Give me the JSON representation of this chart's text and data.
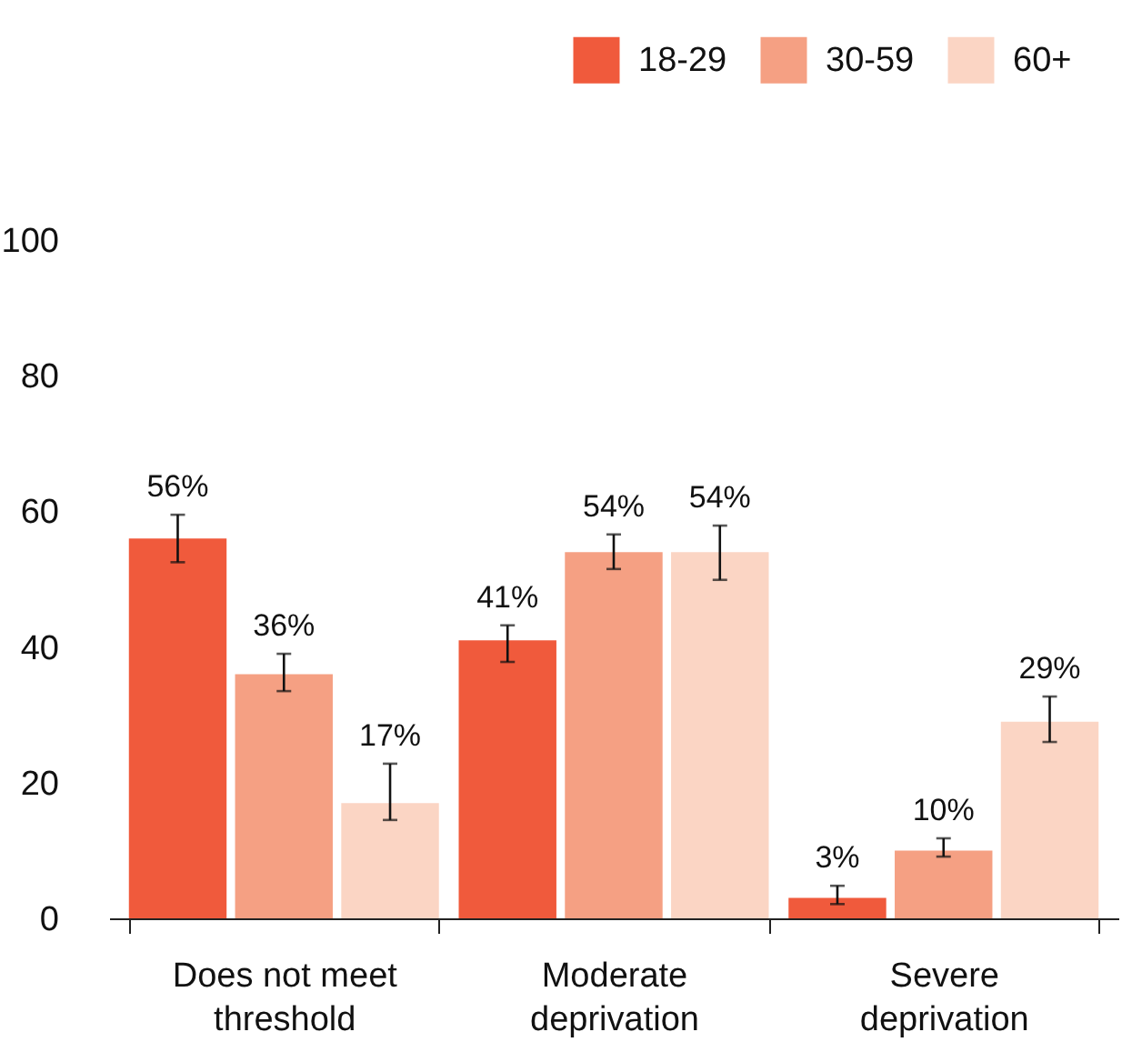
{
  "chart_data": {
    "type": "bar",
    "categories": [
      "Does not meet threshold",
      "Moderate deprivation",
      "Severe deprivation"
    ],
    "series": [
      {
        "name": "18-29",
        "color": "#f05a3c",
        "values": [
          56,
          41,
          3
        ],
        "errors": [
          [
            52.5,
            59.5
          ],
          [
            37.8,
            43.2
          ],
          [
            2.1,
            4.8
          ]
        ],
        "value_labels": [
          "56%",
          "41%",
          "3%"
        ]
      },
      {
        "name": "30-59",
        "color": "#f5a083",
        "values": [
          36,
          54,
          10
        ],
        "errors": [
          [
            33.5,
            39
          ],
          [
            51.5,
            56.6
          ],
          [
            9.1,
            11.8
          ]
        ],
        "value_labels": [
          "36%",
          "54%",
          "10%"
        ]
      },
      {
        "name": "60+",
        "color": "#fbd5c4",
        "values": [
          17,
          54,
          29
        ],
        "errors": [
          [
            14.5,
            22.8
          ],
          [
            49.9,
            57.9
          ],
          [
            26,
            32.7
          ]
        ],
        "value_labels": [
          "17%",
          "54%",
          "29%"
        ]
      }
    ],
    "ylim": [
      0,
      100
    ],
    "yticks": [
      0,
      20,
      40,
      60,
      80,
      100
    ],
    "legend": "top right",
    "grid": false
  }
}
